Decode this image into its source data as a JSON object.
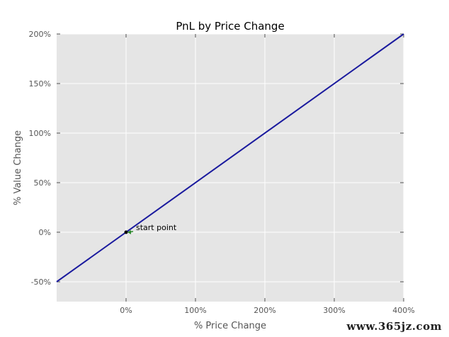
{
  "chart_data": {
    "type": "line",
    "title": "PnL by Price Change",
    "xlabel": "% Price Change",
    "ylabel": "% Value Change",
    "xlim": [
      -100,
      400
    ],
    "ylim": [
      -70,
      200
    ],
    "x_ticks": [
      0,
      100,
      200,
      300,
      400
    ],
    "x_tick_labels": [
      "0%",
      "100%",
      "200%",
      "300%",
      "400%"
    ],
    "y_ticks": [
      -50,
      0,
      50,
      100,
      150,
      200
    ],
    "y_tick_labels": [
      "-50%",
      "0%",
      "50%",
      "100%",
      "150%",
      "200%"
    ],
    "grid": true,
    "series": [
      {
        "x": [
          -100,
          400
        ],
        "y": [
          -50,
          200
        ],
        "color": "#1a1a9e"
      }
    ],
    "annotation": {
      "text": "start point",
      "x": 0,
      "y": 0,
      "arrow_color": "#2e8b2e"
    },
    "background": "#e5e5e5"
  },
  "watermark": "www.365jz.com"
}
